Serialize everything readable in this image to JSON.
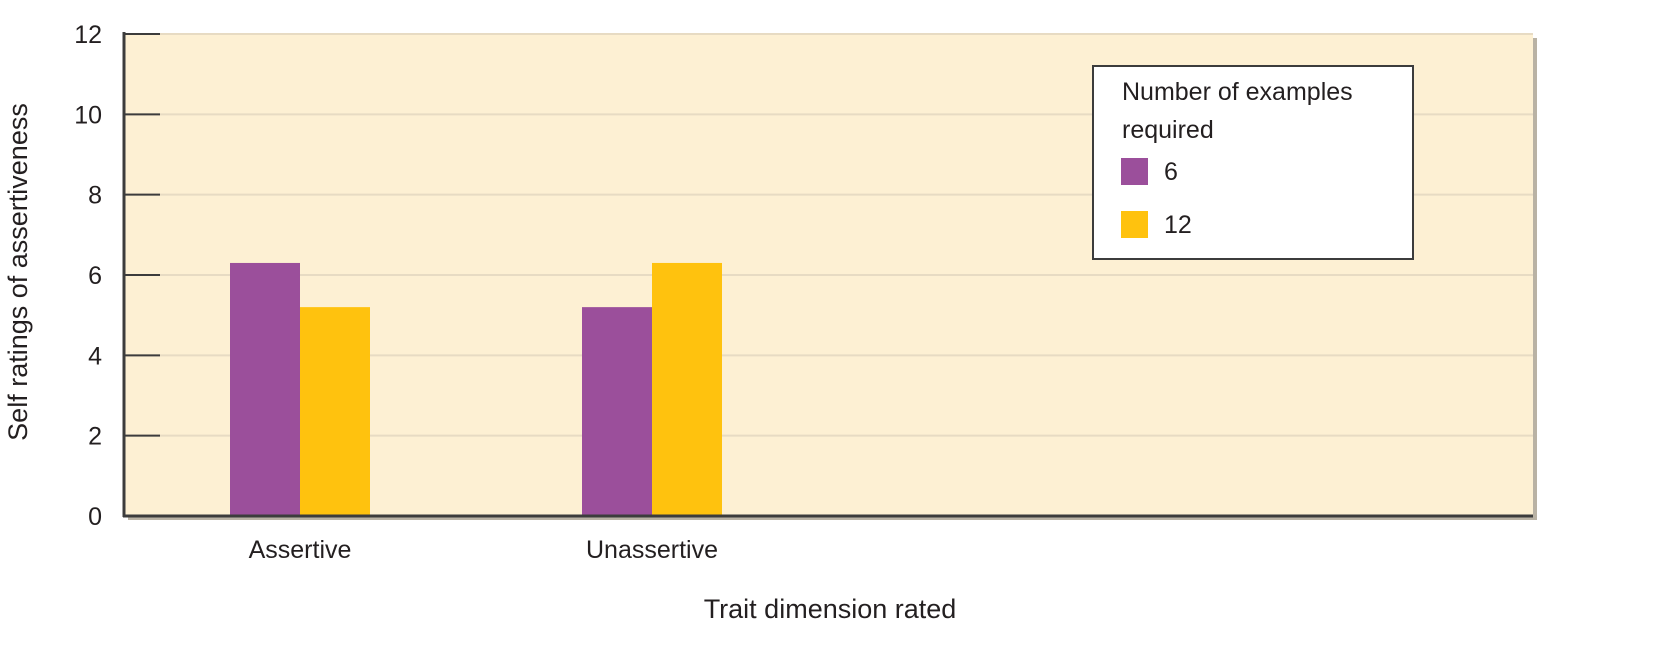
{
  "chart_data": {
    "type": "bar",
    "title": "",
    "xlabel": "Trait dimension rated",
    "ylabel": "Self ratings of assertiveness",
    "categories": [
      "Assertive",
      "Unassertive"
    ],
    "series": [
      {
        "name": "6",
        "values": [
          6.3,
          5.2
        ],
        "color": "#9b4f9b"
      },
      {
        "name": "12",
        "values": [
          5.2,
          6.3
        ],
        "color": "#ffc20e"
      }
    ],
    "ylim": [
      0,
      12
    ],
    "yticks": [
      "0",
      "2",
      "4",
      "6",
      "8",
      "10",
      "12"
    ],
    "grid": true,
    "legend": {
      "title": "Number of examples required",
      "title_lines": [
        "Number of examples",
        "required"
      ],
      "placement": "top-right"
    },
    "colors": {
      "plot_background": "#fdf0d3",
      "gridline": "#e7dbc3",
      "axis": "#3c3c3c",
      "shadow": "#b9b2a4"
    }
  }
}
